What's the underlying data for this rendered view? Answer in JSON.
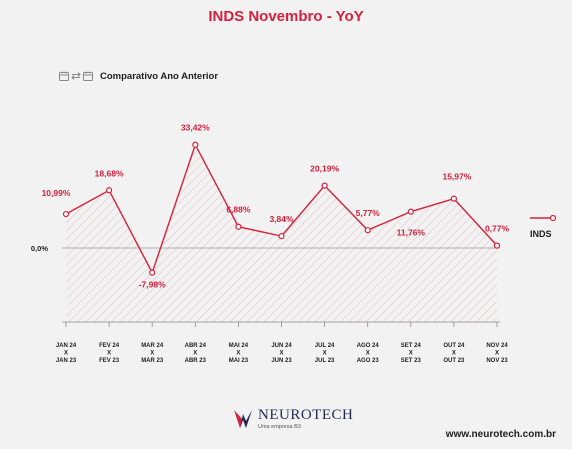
{
  "title": "INDS Novembro - YoY",
  "subtitle": "Comparativo Ano Anterior",
  "icons": [
    "calendar-icon",
    "swap-arrows-icon",
    "calendar-icon"
  ],
  "colors": {
    "accent": "#d8203a",
    "line": "#d8203a",
    "axis": "#8a8a8a",
    "text": "#1e1e1e",
    "background": "#f2f2f2",
    "logo": "#1f2a52"
  },
  "chart_data": {
    "type": "line",
    "categories": [
      [
        "JAN 24",
        "X",
        "JAN 23"
      ],
      [
        "FEV 24",
        "X",
        "FEV 23"
      ],
      [
        "MAR 24",
        "X",
        "MAR 23"
      ],
      [
        "ABR 24",
        "X",
        "ABR 23"
      ],
      [
        "MAI 24",
        "X",
        "MAI 23"
      ],
      [
        "JUN 24",
        "X",
        "JUN 23"
      ],
      [
        "JUL 24",
        "X",
        "JUL 23"
      ],
      [
        "AGO 24",
        "X",
        "AGO 23"
      ],
      [
        "SET 24",
        "X",
        "SET 23"
      ],
      [
        "OUT 24",
        "X",
        "OUT 23"
      ],
      [
        "NOV 24",
        "X",
        "NOV 23"
      ]
    ],
    "series": [
      {
        "name": "INDS",
        "values": [
          10.99,
          18.68,
          -7.98,
          33.42,
          6.88,
          3.84,
          20.19,
          5.77,
          11.76,
          15.97,
          0.77
        ]
      }
    ],
    "data_labels": [
      "10,99%",
      "18,68%",
      "-7,98%",
      "33,42%",
      "6,88%",
      "3,84%",
      "20,19%",
      "5,77%",
      "11,76%",
      "15,97%",
      "0,77%"
    ],
    "zero_label": "0,0%",
    "legend": {
      "label": "INDS",
      "position": "right"
    },
    "xlabel": "",
    "ylabel": "",
    "area_fill": "hatched",
    "grid": false
  },
  "footer": {
    "logo_name": "NEUROTECH",
    "logo_tagline": "Uma empresa B3",
    "website": "www.neurotech.com.br"
  }
}
